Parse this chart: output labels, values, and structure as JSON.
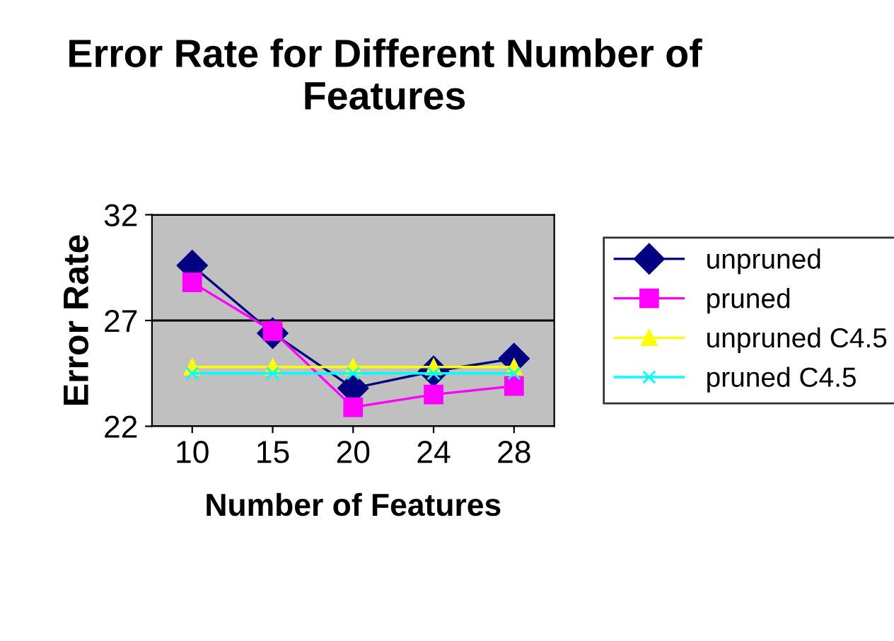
{
  "chart_data": {
    "type": "line",
    "title": "Error Rate for Different Number of Features",
    "xlabel": "Number of Features",
    "ylabel": "Error Rate",
    "categories": [
      "10",
      "15",
      "20",
      "24",
      "28"
    ],
    "series": [
      {
        "name": "unpruned",
        "color": "#000080",
        "values": [
          29.6,
          26.4,
          23.8,
          24.6,
          25.2
        ],
        "marker": "diamond"
      },
      {
        "name": "pruned",
        "color": "#ff00ff",
        "values": [
          28.8,
          26.5,
          22.9,
          23.5,
          23.9
        ],
        "marker": "square"
      },
      {
        "name": "unpruned C4.5",
        "color": "#ffff00",
        "values": [
          24.8,
          24.8,
          24.8,
          24.8,
          24.8
        ],
        "marker": "triangle"
      },
      {
        "name": "pruned C4.5",
        "color": "#00ffff",
        "values": [
          24.5,
          24.5,
          24.5,
          24.5,
          24.5
        ],
        "marker": "cross"
      }
    ],
    "ylim": [
      22,
      32
    ],
    "yticks": [
      22,
      27,
      32
    ],
    "grid": "y",
    "legend": "right"
  }
}
